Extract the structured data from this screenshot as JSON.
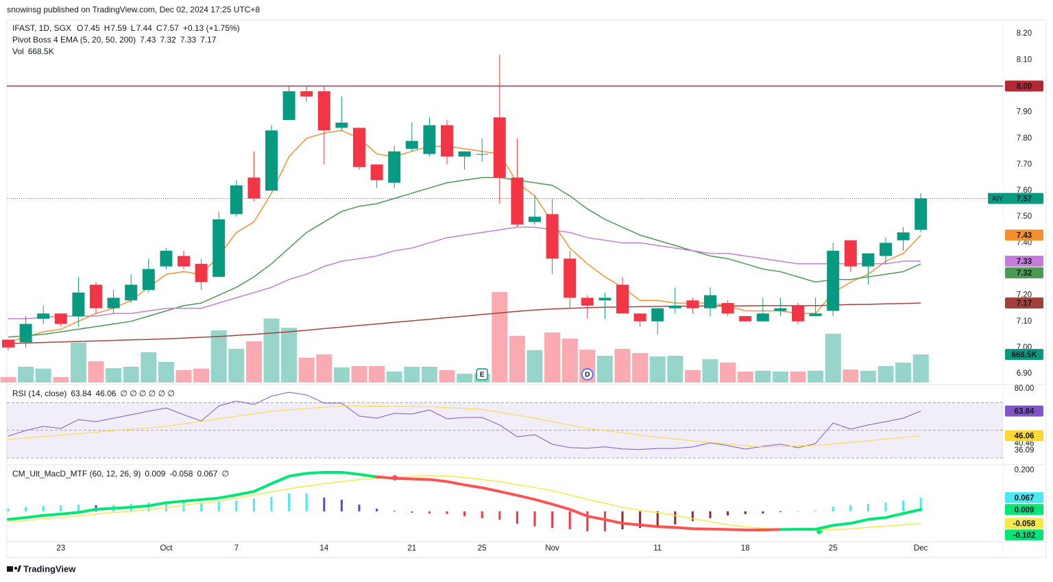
{
  "publisher": "snowinsg published on TradingView.com, Dec 02, 2024 17:25 UTC+8",
  "footer": "TradingView",
  "chart_data": [
    {
      "type": "candlestick",
      "symbol": "IFAST, 1D, SGX",
      "ohlc_legend": [
        {
          "label": "O",
          "value": "7.45"
        },
        {
          "label": "H",
          "value": "7.59"
        },
        {
          "label": "L",
          "value": "7.44"
        },
        {
          "label": "C",
          "value": "7.57"
        }
      ],
      "change": "+0.13 (+1.75%)",
      "categories": [
        null,
        null,
        null,
        "23",
        null,
        null,
        null,
        null,
        null,
        "Oct",
        null,
        null,
        null,
        "7",
        null,
        null,
        null,
        null,
        "14",
        null,
        null,
        null,
        null,
        "21",
        null,
        null,
        null,
        "25",
        null,
        null,
        null,
        "Nov",
        null,
        null,
        null,
        null,
        null,
        "11",
        null,
        null,
        null,
        null,
        "18",
        null,
        null,
        null,
        null,
        "25",
        null,
        null,
        null,
        null,
        "Dec"
      ],
      "open": [
        7.03,
        7.02,
        7.11,
        7.13,
        7.12,
        7.24,
        7.15,
        7.18,
        7.22,
        7.31,
        7.35,
        7.32,
        7.27,
        7.51,
        7.65,
        7.6,
        7.87,
        7.98,
        7.98,
        7.84,
        7.84,
        7.7,
        7.63,
        7.76,
        7.74,
        7.85,
        7.73,
        7.74,
        7.88,
        7.65,
        7.48,
        7.51,
        7.34,
        7.19,
        7.18,
        7.24,
        7.13,
        7.1,
        7.15,
        7.18,
        7.15,
        7.17,
        7.12,
        7.1,
        7.14,
        7.16,
        7.12,
        7.14,
        7.41,
        7.31,
        7.35,
        7.41,
        7.45
      ],
      "high": [
        7.03,
        7.12,
        7.16,
        7.13,
        7.27,
        7.25,
        7.22,
        7.28,
        7.34,
        7.38,
        7.37,
        7.34,
        7.52,
        7.64,
        7.75,
        7.85,
        8.0,
        8.0,
        8.0,
        7.96,
        7.84,
        7.7,
        7.77,
        7.86,
        7.88,
        7.87,
        7.75,
        7.8,
        8.12,
        7.8,
        7.58,
        7.57,
        7.37,
        7.2,
        7.21,
        7.27,
        7.13,
        7.15,
        7.23,
        7.19,
        7.23,
        7.18,
        7.12,
        7.19,
        7.19,
        7.17,
        7.19,
        7.4,
        7.41,
        7.36,
        7.42,
        7.46,
        7.59
      ],
      "low": [
        6.99,
        7.0,
        7.09,
        7.08,
        7.08,
        7.13,
        7.13,
        7.17,
        7.21,
        7.3,
        7.3,
        7.22,
        7.27,
        7.5,
        7.56,
        7.6,
        7.87,
        7.94,
        7.7,
        7.83,
        7.68,
        7.61,
        7.61,
        7.75,
        7.73,
        7.7,
        7.68,
        7.71,
        7.55,
        7.46,
        7.47,
        7.28,
        7.15,
        7.11,
        7.11,
        7.13,
        7.08,
        7.05,
        7.13,
        7.13,
        7.12,
        7.12,
        7.1,
        7.1,
        7.12,
        7.09,
        7.12,
        7.12,
        7.29,
        7.24,
        7.32,
        7.37,
        7.44
      ],
      "close": [
        7.0,
        7.09,
        7.13,
        7.09,
        7.21,
        7.15,
        7.19,
        7.24,
        7.3,
        7.37,
        7.31,
        7.25,
        7.49,
        7.62,
        7.57,
        7.83,
        7.98,
        7.96,
        7.83,
        7.86,
        7.69,
        7.64,
        7.75,
        7.79,
        7.85,
        7.73,
        7.75,
        7.74,
        7.65,
        7.47,
        7.5,
        7.34,
        7.19,
        7.16,
        7.19,
        7.13,
        7.1,
        7.15,
        7.16,
        7.15,
        7.2,
        7.13,
        7.1,
        7.13,
        7.15,
        7.1,
        7.13,
        7.37,
        7.31,
        7.36,
        7.4,
        7.44,
        7.57
      ],
      "close_label": "7.57",
      "price_line_name": "AIY",
      "up_color": "#089981",
      "down_color": "#f23645",
      "ylim": [
        6.866,
        8.245
      ],
      "yticks": [
        {
          "value": 8.2,
          "label": "8.20"
        },
        {
          "value": 8.1,
          "label": "8.10"
        },
        {
          "value": 7.9,
          "label": "7.90"
        },
        {
          "value": 7.8,
          "label": "7.80"
        },
        {
          "value": 7.7,
          "label": "7.70"
        },
        {
          "value": 7.6,
          "label": "7.60"
        },
        {
          "value": 7.5,
          "label": "7.50"
        },
        {
          "value": 7.4,
          "label": "7.40"
        },
        {
          "value": 7.2,
          "label": "7.20"
        },
        {
          "value": 7.1,
          "label": "7.10"
        },
        {
          "value": 7.0,
          "label": "7.00"
        },
        {
          "value": 6.9,
          "label": "6.90"
        }
      ],
      "overlay": {
        "name": "Pivot Boss 4 EMA (5, 20, 50, 200)",
        "series": [
          {
            "color": "#f5902d",
            "value_label": "7.43",
            "values": [
              7.02,
              7.04,
              7.06,
              7.07,
              7.1,
              7.13,
              7.15,
              7.18,
              7.23,
              7.28,
              7.29,
              7.28,
              7.35,
              7.44,
              7.48,
              7.59,
              7.73,
              7.8,
              7.82,
              7.83,
              7.8,
              7.74,
              7.73,
              7.75,
              7.77,
              7.77,
              7.76,
              7.75,
              7.74,
              7.63,
              7.58,
              7.48,
              7.38,
              7.32,
              7.27,
              7.23,
              7.18,
              7.18,
              7.17,
              7.17,
              7.17,
              7.16,
              7.14,
              7.14,
              7.14,
              7.13,
              7.13,
              7.21,
              7.25,
              7.28,
              7.33,
              7.36,
              7.43
            ]
          },
          {
            "color": "#4a9a53",
            "value_label": "7.32",
            "values": [
              7.04,
              7.045,
              7.05,
              7.06,
              7.07,
              7.08,
              7.09,
              7.1,
              7.12,
              7.14,
              7.16,
              7.17,
              7.2,
              7.23,
              7.27,
              7.32,
              7.38,
              7.44,
              7.48,
              7.52,
              7.54,
              7.55,
              7.57,
              7.59,
              7.61,
              7.63,
              7.64,
              7.65,
              7.65,
              7.64,
              7.63,
              7.62,
              7.58,
              7.53,
              7.49,
              7.46,
              7.43,
              7.41,
              7.39,
              7.37,
              7.35,
              7.34,
              7.32,
              7.3,
              7.29,
              7.27,
              7.25,
              7.26,
              7.26,
              7.27,
              7.28,
              7.29,
              7.32
            ]
          },
          {
            "color": "#c37fd8",
            "value_label": "7.33",
            "values": [
              7.11,
              7.11,
              7.115,
              7.12,
              7.12,
              7.12,
              7.13,
              7.13,
              7.14,
              7.15,
              7.15,
              7.15,
              7.17,
              7.19,
              7.21,
              7.23,
              7.26,
              7.28,
              7.31,
              7.33,
              7.34,
              7.35,
              7.37,
              7.38,
              7.4,
              7.42,
              7.43,
              7.44,
              7.45,
              7.46,
              7.46,
              7.45,
              7.44,
              7.42,
              7.41,
              7.4,
              7.4,
              7.39,
              7.38,
              7.37,
              7.36,
              7.36,
              7.35,
              7.34,
              7.33,
              7.32,
              7.32,
              7.32,
              7.32,
              7.32,
              7.32,
              7.33,
              7.33
            ]
          },
          {
            "color": "#a2413a",
            "value_label": "7.17",
            "values": [
              7.015,
              7.017,
              7.019,
              7.021,
              7.023,
              7.025,
              7.027,
              7.029,
              7.031,
              7.033,
              7.036,
              7.039,
              7.042,
              7.046,
              7.05,
              7.055,
              7.06,
              7.066,
              7.072,
              7.078,
              7.084,
              7.09,
              7.096,
              7.102,
              7.108,
              7.114,
              7.12,
              7.126,
              7.132,
              7.138,
              7.143,
              7.147,
              7.15,
              7.152,
              7.154,
              7.155,
              7.156,
              7.157,
              7.158,
              7.158,
              7.159,
              7.159,
              7.159,
              7.16,
              7.16,
              7.16,
              7.16,
              7.162,
              7.164,
              7.165,
              7.167,
              7.168,
              7.17
            ]
          }
        ]
      },
      "level": {
        "value": 8,
        "label": "8.00",
        "color": "#b22833"
      },
      "volume": {
        "name": "Vol",
        "value_label": "668.5K",
        "ylim": [
          0,
          8570000
        ],
        "values": [
          130000,
          375000,
          330000,
          130000,
          945000,
          505000,
          340000,
          375000,
          720000,
          490000,
          295000,
          330000,
          1240000,
          800000,
          980000,
          1520000,
          1300000,
          590000,
          670000,
          360000,
          390000,
          390000,
          260000,
          375000,
          375000,
          295000,
          210000,
          210000,
          2150000,
          1110000,
          770000,
          1190000,
          1045000,
          780000,
          635000,
          800000,
          700000,
          620000,
          635000,
          295000,
          555000,
          475000,
          260000,
          280000,
          260000,
          260000,
          280000,
          1160000,
          310000,
          280000,
          390000,
          475000,
          668500
        ]
      },
      "events": [
        {
          "index": 27,
          "label": "E"
        },
        {
          "index": 33,
          "label": "D"
        }
      ]
    },
    {
      "type": "line",
      "title": "RSI (14, close)",
      "extra": "∅ ∅ ∅ ∅ ∅ ∅",
      "ylim": [
        26.04,
        82.48
      ],
      "yticks": [
        {
          "value": 80,
          "label": "80.00"
        },
        {
          "value": 40.46,
          "label": "40.46"
        },
        {
          "value": 36.09,
          "label": "36.09"
        }
      ],
      "bands": [
        70,
        50,
        30
      ],
      "band_color": "#7e57c2",
      "series": [
        {
          "color": "#7e57c2",
          "value_label": "63.84",
          "values": [
            45.8,
            49.8,
            52.8,
            51.3,
            57.7,
            56.2,
            58.7,
            61.2,
            63.7,
            66.1,
            61.2,
            56.7,
            67.6,
            71.1,
            68.6,
            74.6,
            77.5,
            75.5,
            69.6,
            69.6,
            60.2,
            58.7,
            62.2,
            61.7,
            64.7,
            58.2,
            59.2,
            59.2,
            53.8,
            45.3,
            46.8,
            39.9,
            37.5,
            37.0,
            38.0,
            36.5,
            36.09,
            36.9,
            36.9,
            37.9,
            40.9,
            38.9,
            36.4,
            38.4,
            39.9,
            37.4,
            40.4,
            55.2,
            50.8,
            53.8,
            56.2,
            58.7,
            63.84
          ]
        },
        {
          "color": "#fdd835",
          "value_label": "46.06",
          "values": [
            43.4,
            44.4,
            45.5,
            46.5,
            47.6,
            48.6,
            49.7,
            50.7,
            51.8,
            52.8,
            54.6,
            56.4,
            58.3,
            60.1,
            61.9,
            63.7,
            64.7,
            65.7,
            66.6,
            67.6,
            67.5,
            67.4,
            67.2,
            67.1,
            67.0,
            66.3,
            65.7,
            65.0,
            62.9,
            60.8,
            58.7,
            56.2,
            53.8,
            51.3,
            49.7,
            48.1,
            46.5,
            44.9,
            43.7,
            42.4,
            41.2,
            39.9,
            38.9,
            37.9,
            38.2,
            38.6,
            38.9,
            40.1,
            41.2,
            42.4,
            43.6,
            44.8,
            46.06
          ]
        }
      ]
    },
    {
      "type": "macd",
      "title": "CM_Ult_MacD_MTF (60, 12, 26, 9)",
      "extra": "∅",
      "ylim": [
        -0.1467,
        0.22
      ],
      "yticks": [
        {
          "value": 0.2,
          "label": "0.200"
        }
      ],
      "macd": {
        "value_label": "0.009",
        "up_color": "#00e676",
        "down_color": "#ff5252",
        "values": [
          -0.039,
          -0.03,
          -0.02,
          -0.013,
          -0.005,
          0.01,
          0.015,
          0.02,
          0.027,
          0.042,
          0.05,
          0.057,
          0.065,
          0.08,
          0.097,
          0.135,
          0.171,
          0.185,
          0.19,
          0.19,
          0.18,
          0.168,
          0.161,
          0.158,
          0.155,
          0.145,
          0.129,
          0.115,
          0.097,
          0.078,
          0.058,
          0.035,
          0.01,
          -0.023,
          -0.04,
          -0.058,
          -0.066,
          -0.074,
          -0.078,
          -0.084,
          -0.086,
          -0.088,
          -0.09,
          -0.09,
          -0.088,
          -0.087,
          -0.087,
          -0.068,
          -0.058,
          -0.039,
          -0.03,
          -0.01,
          0.009
        ]
      },
      "signal": {
        "value_label": "-0.058",
        "color": "#f5e94a",
        "values": [
          -0.052,
          -0.045,
          -0.035,
          -0.03,
          -0.022,
          -0.013,
          -0.005,
          0,
          0.01,
          0.019,
          0.03,
          0.04,
          0.05,
          0.065,
          0.08,
          0.095,
          0.11,
          0.123,
          0.135,
          0.145,
          0.155,
          0.161,
          0.165,
          0.17,
          0.174,
          0.172,
          0.165,
          0.155,
          0.145,
          0.13,
          0.116,
          0.1,
          0.08,
          0.058,
          0.04,
          0.02,
          0.005,
          -0.006,
          -0.02,
          -0.035,
          -0.05,
          -0.065,
          -0.075,
          -0.082,
          -0.087,
          -0.089,
          -0.09,
          -0.088,
          -0.085,
          -0.077,
          -0.072,
          -0.065,
          -0.058
        ]
      },
      "histogram": {
        "value_label": "0.067",
        "colors": {
          "up_rising": "#4de8f0",
          "up_falling": "#4a4ae8",
          "down_falling": "#f23645",
          "down_rising": "#8b2a2a"
        },
        "values": [
          0.013,
          0.02,
          0.027,
          0.03,
          0.033,
          0.03,
          0.03,
          0.037,
          0.043,
          0.043,
          0.043,
          0.043,
          0.05,
          0.053,
          0.063,
          0.07,
          0.087,
          0.087,
          0.067,
          0.057,
          0.033,
          0.013,
          0.003,
          -0.007,
          -0.01,
          -0.013,
          -0.023,
          -0.033,
          -0.04,
          -0.06,
          -0.073,
          -0.08,
          -0.087,
          -0.097,
          -0.097,
          -0.087,
          -0.08,
          -0.073,
          -0.063,
          -0.047,
          -0.033,
          -0.02,
          -0.013,
          -0.01,
          -0.002,
          0.002,
          0.004,
          0.023,
          0.03,
          0.037,
          0.043,
          0.053,
          0.067
        ]
      },
      "badge": {
        "value": -0.102,
        "label": "-0.102",
        "color": "#00e676"
      }
    }
  ]
}
